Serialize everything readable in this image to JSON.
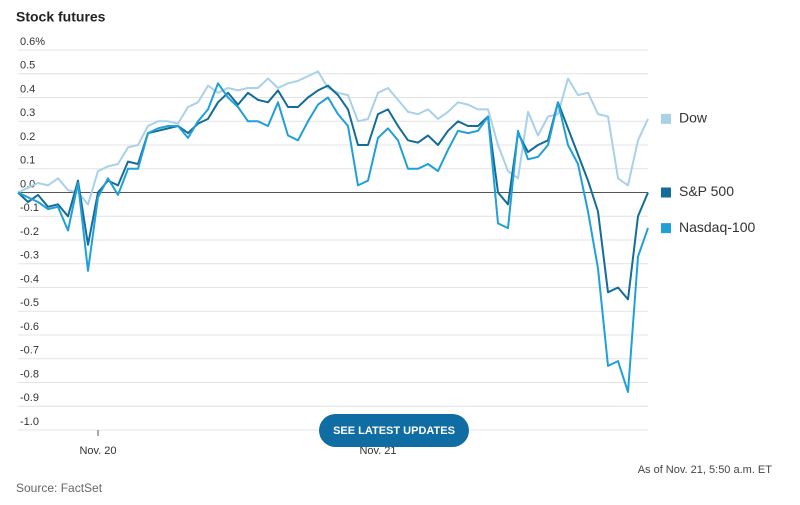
{
  "chart_data": {
    "type": "line",
    "title": "Stock futures",
    "categories": [
      null,
      null,
      null,
      null,
      null,
      null,
      null,
      null,
      "Nov. 20",
      null,
      null,
      null,
      null,
      null,
      null,
      null,
      null,
      null,
      null,
      null,
      null,
      null,
      null,
      null,
      null,
      null,
      null,
      null,
      null,
      null,
      null,
      null,
      null,
      null,
      null,
      null,
      "Nov. 21",
      null,
      null,
      null,
      null,
      null,
      null,
      null,
      null,
      null,
      null,
      null,
      null,
      null,
      null,
      null,
      null,
      null,
      null,
      null,
      null,
      null,
      null,
      null,
      null,
      null,
      null,
      null
    ],
    "series": [
      {
        "name": "Dow",
        "color": "#a9d1e8",
        "values": [
          0,
          0.02,
          0.04,
          0.03,
          0.06,
          0.01,
          0.0,
          -0.05,
          0.09,
          0.11,
          0.12,
          0.19,
          0.2,
          0.28,
          0.3,
          0.3,
          0.29,
          0.36,
          0.38,
          0.45,
          0.42,
          0.44,
          0.43,
          0.44,
          0.44,
          0.48,
          0.44,
          0.46,
          0.47,
          0.49,
          0.51,
          0.44,
          0.42,
          0.41,
          0.3,
          0.31,
          0.42,
          0.44,
          0.39,
          0.34,
          0.33,
          0.35,
          0.31,
          0.34,
          0.38,
          0.37,
          0.35,
          0.35,
          0.2,
          0.09,
          0.06,
          0.34,
          0.24,
          0.32,
          0.33,
          0.48,
          0.41,
          0.42,
          0.33,
          0.32,
          0.06,
          0.03,
          0.22,
          0.31
        ]
      },
      {
        "name": "S&P 500",
        "color": "#136d98",
        "values": [
          0,
          -0.04,
          -0.01,
          -0.06,
          -0.05,
          -0.1,
          0.05,
          -0.22,
          0.0,
          0.05,
          0.03,
          0.13,
          0.12,
          0.25,
          0.26,
          0.27,
          0.28,
          0.25,
          0.29,
          0.31,
          0.38,
          0.42,
          0.37,
          0.42,
          0.39,
          0.38,
          0.43,
          0.36,
          0.36,
          0.4,
          0.43,
          0.45,
          0.41,
          0.35,
          0.2,
          0.2,
          0.33,
          0.35,
          0.28,
          0.22,
          0.21,
          0.24,
          0.2,
          0.26,
          0.3,
          0.28,
          0.28,
          0.32,
          0.0,
          -0.05,
          0.25,
          0.17,
          0.2,
          0.22,
          0.38,
          0.27,
          0.16,
          0.05,
          -0.08,
          -0.42,
          -0.4,
          -0.45,
          -0.1,
          0.0
        ]
      },
      {
        "name": "Nasdaq-100",
        "color": "#20a0d6",
        "values": [
          0,
          -0.02,
          -0.04,
          -0.07,
          -0.06,
          -0.16,
          0.04,
          -0.33,
          -0.02,
          0.06,
          -0.01,
          0.1,
          0.1,
          0.25,
          0.27,
          0.28,
          0.28,
          0.23,
          0.3,
          0.35,
          0.46,
          0.4,
          0.36,
          0.3,
          0.3,
          0.28,
          0.38,
          0.24,
          0.22,
          0.3,
          0.37,
          0.4,
          0.33,
          0.28,
          0.03,
          0.05,
          0.23,
          0.27,
          0.22,
          0.1,
          0.1,
          0.12,
          0.09,
          0.18,
          0.26,
          0.25,
          0.26,
          0.32,
          -0.13,
          -0.15,
          0.26,
          0.14,
          0.15,
          0.2,
          0.38,
          0.2,
          0.12,
          -0.08,
          -0.32,
          -0.73,
          -0.71,
          -0.84,
          -0.27,
          -0.15
        ]
      }
    ],
    "ylim": [
      -1.0,
      0.6
    ],
    "yticks": [
      {
        "value": 0.6,
        "label": "0.6%"
      },
      0.5,
      0.4,
      0.3,
      0.2,
      0.1,
      {
        "value": 0,
        "label": "0.0"
      },
      -0.1,
      -0.2,
      -0.3,
      -0.4,
      -0.5,
      -0.6,
      -0.7,
      -0.8,
      -0.9,
      {
        "value": -1.0,
        "label": "-1.0"
      }
    ],
    "grid": true,
    "legend": "right",
    "annotation": "As of Nov. 21, 5:50 a.m. ET",
    "source": "Source: FactSet",
    "button": "SEE LATEST UPDATES"
  }
}
